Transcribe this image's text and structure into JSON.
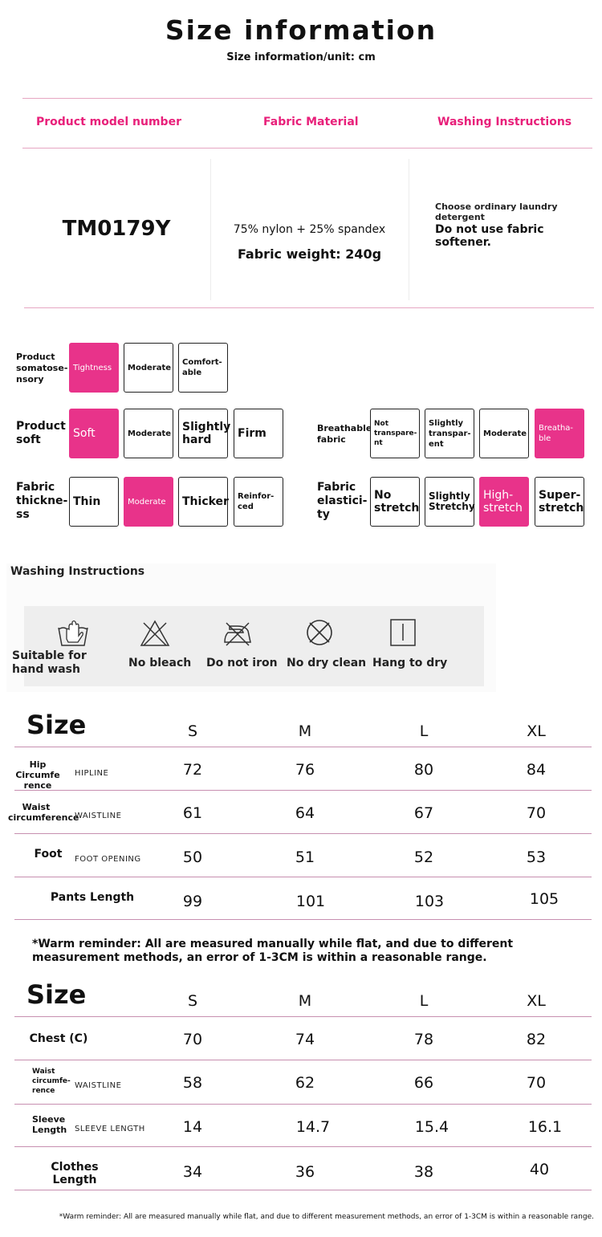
{
  "header": {
    "title": "Size information",
    "subtitle": "Size information/unit: cm"
  },
  "info_table": {
    "headers": [
      "Product model number",
      "Fabric Material",
      "Washing Instructions"
    ],
    "model": "TM0179Y",
    "fabric_line1": "75% nylon + 25% spandex",
    "fabric_line2": "Fabric weight: 240g",
    "wash_line1": "Choose ordinary laundry detergent",
    "wash_line2": "Do not use fabric softener.",
    "accent_color": "#e8207a"
  },
  "attributes": {
    "selected_color": "#e8338a",
    "somatosensory": {
      "label": "Product somatose-nsory",
      "options": [
        "Tightness",
        "Moderate",
        "Comfort-able"
      ],
      "selected": 0
    },
    "soft": {
      "label": "Product soft",
      "options": [
        "Soft",
        "Moderate",
        "Slightly hard",
        "Firm"
      ],
      "selected": 0
    },
    "thickness": {
      "label": "Fabric thickne-ss",
      "options": [
        "Thin",
        "Moderate",
        "Thicker",
        "Reinfor-ced"
      ],
      "selected": 1
    },
    "breathable": {
      "label": "Breathable fabric",
      "options": [
        "Not transpare-nt",
        "Slightly transpar-ent",
        "Moderate",
        "Breatha-ble"
      ],
      "selected": 3
    },
    "elasticity": {
      "label": "Fabric elastici-ty",
      "options": [
        "No stretch",
        "Slightly Stretchy",
        "High-stretch",
        "Super-stretch"
      ],
      "selected": 2
    }
  },
  "washing": {
    "title": "Washing Instructions",
    "items": [
      {
        "icon": "hand-wash-icon",
        "label": "Suitable for hand wash"
      },
      {
        "icon": "no-bleach-icon",
        "label": "No bleach"
      },
      {
        "icon": "no-iron-icon",
        "label": "Do not iron"
      },
      {
        "icon": "no-dry-clean-icon",
        "label": "No dry clean"
      },
      {
        "icon": "hang-dry-icon",
        "label": "Hang to dry"
      }
    ]
  },
  "pants_table": {
    "title": "Size",
    "sizes": [
      "S",
      "M",
      "L",
      "XL"
    ],
    "rows": [
      {
        "label": "Hip Circumfe rence",
        "sub": "HIPLINE",
        "values": [
          "72",
          "76",
          "80",
          "84"
        ]
      },
      {
        "label": "Waist circumference",
        "sub": "WAISTLINE",
        "values": [
          "61",
          "64",
          "67",
          "70"
        ]
      },
      {
        "label": "Foot",
        "sub": "FOOT OPENING",
        "values": [
          "50",
          "51",
          "52",
          "53"
        ]
      },
      {
        "label": "Pants Length",
        "sub": "",
        "values": [
          "99",
          "101",
          "103",
          "105"
        ]
      }
    ],
    "note": "*Warm reminder: All are measured manually while flat, and due to different measurement methods, an error of 1-3CM is within a reasonable range."
  },
  "top_table": {
    "title": "Size",
    "sizes": [
      "S",
      "M",
      "L",
      "XL"
    ],
    "rows": [
      {
        "label": "Chest (C)",
        "sub": "",
        "values": [
          "70",
          "74",
          "78",
          "82"
        ]
      },
      {
        "label": "Waist circumfe-rence",
        "sub": "WAISTLINE",
        "values": [
          "58",
          "62",
          "66",
          "70"
        ]
      },
      {
        "label": "Sleeve Length",
        "sub": "SLEEVE LENGTH",
        "values": [
          "14",
          "14.7",
          "15.4",
          "16.1"
        ]
      },
      {
        "label": "Clothes Length",
        "sub": "",
        "values": [
          "34",
          "36",
          "38",
          "40"
        ]
      }
    ],
    "note": "*Warm reminder: All are measured manually while flat, and due to different measurement methods, an error of 1-3CM is within a reasonable range."
  }
}
